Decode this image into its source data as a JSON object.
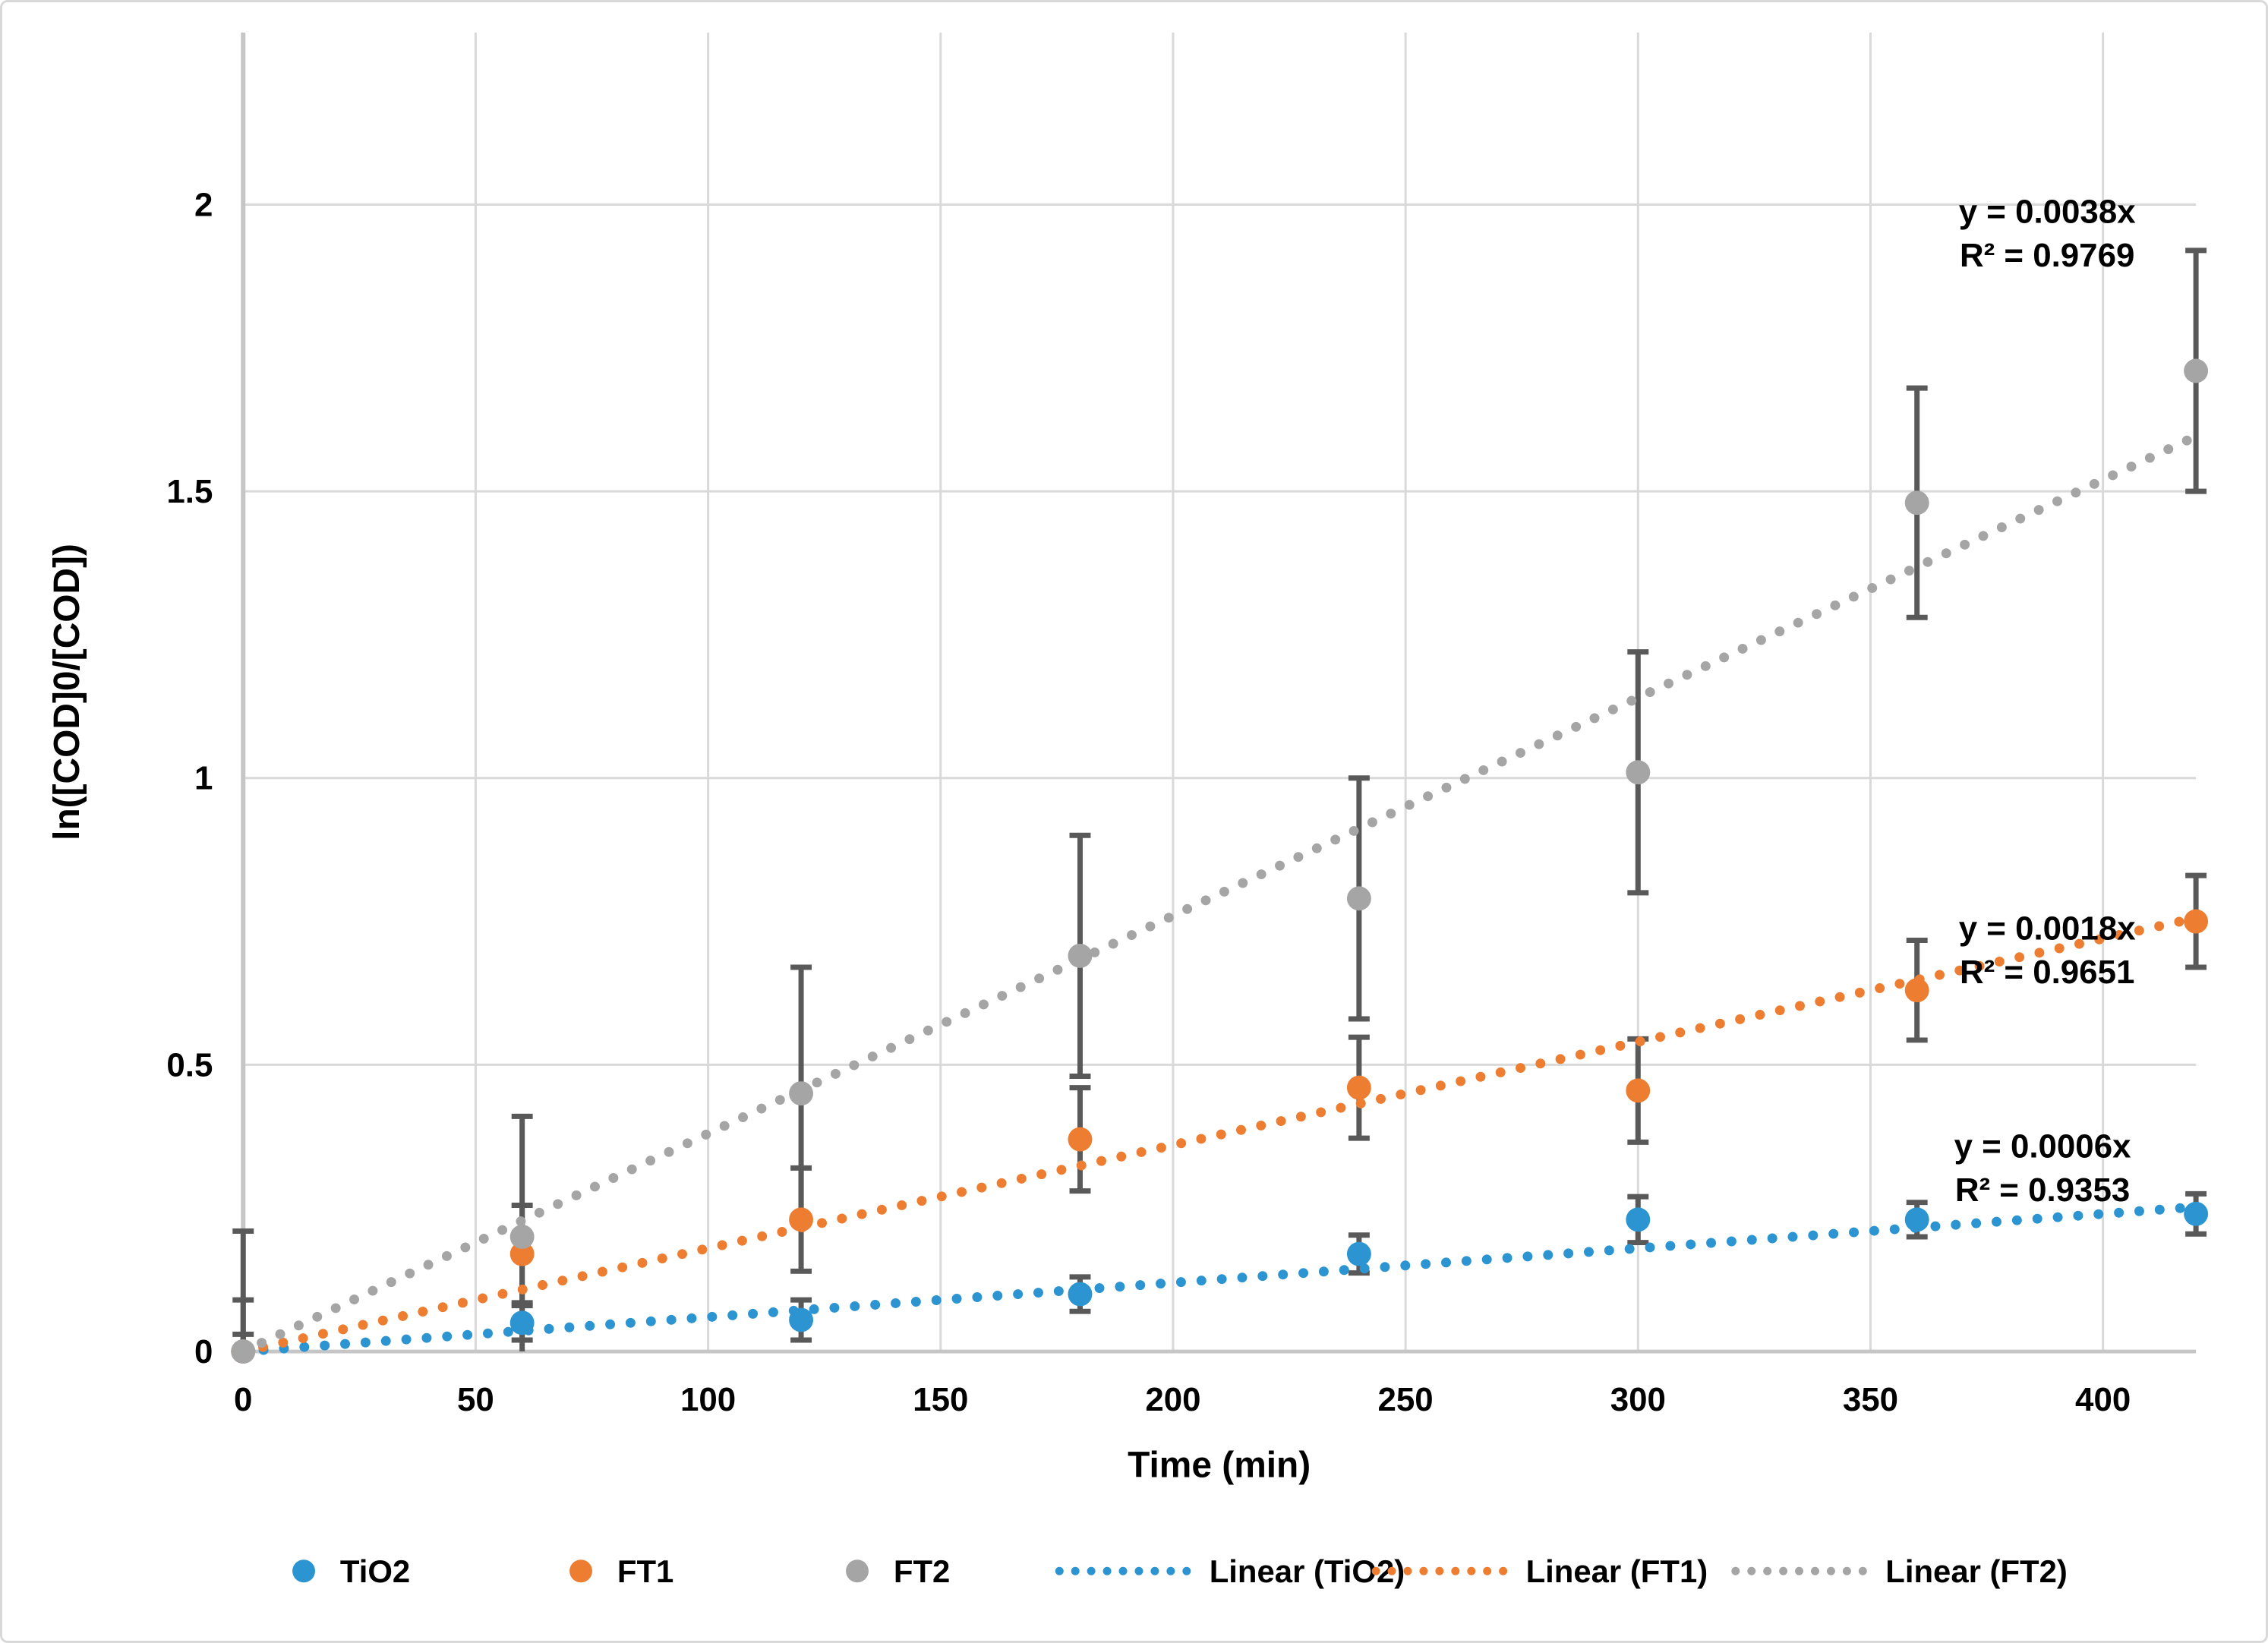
{
  "figure": {
    "background": "#FFFFFF",
    "border_color": "#D9D9D9"
  },
  "chart_data": {
    "type": "scatter",
    "title": "",
    "xlabel": "Time (min)",
    "ylabel": "ln([COD]0/[COD])",
    "xlim": [
      0,
      420
    ],
    "ylim": [
      0,
      2.3
    ],
    "x_ticks": [
      0,
      50,
      100,
      150,
      200,
      250,
      300,
      350,
      400
    ],
    "y_ticks": [
      0,
      0.5,
      1,
      1.5,
      2
    ],
    "grid": true,
    "legend_position": "bottom",
    "colors": {
      "grid": "#D9D9D9",
      "axis": "#C6C6C6",
      "error_bar": "#595959",
      "text": "#000000"
    },
    "x": [
      0,
      60,
      120,
      180,
      240,
      300,
      360,
      420
    ],
    "series": [
      {
        "name": "TiO2",
        "color": "#2B94D1",
        "values": [
          0,
          0.05,
          0.055,
          0.1,
          0.17,
          0.23,
          0.23,
          0.24
        ],
        "errors": [
          0.03,
          0.03,
          0.035,
          0.03,
          0.033,
          0.04,
          0.03,
          0.035
        ],
        "trendline": {
          "name": "Linear (TiO2)",
          "slope": 0.0006,
          "equation": "y = 0.0006x",
          "r_squared": "R² = 0.9353"
        }
      },
      {
        "name": "FT1",
        "color": "#ED7D31",
        "values": [
          0,
          0.17,
          0.23,
          0.37,
          0.46,
          0.455,
          0.63,
          0.75
        ],
        "errors": [
          0.09,
          0.085,
          0.09,
          0.09,
          0.088,
          0.09,
          0.087,
          0.08
        ],
        "trendline": {
          "name": "Linear (FT1)",
          "slope": 0.0018,
          "equation": "y = 0.0018x",
          "r_squared": "R² = 0.9651"
        }
      },
      {
        "name": "FT2",
        "color": "#A5A5A5",
        "values": [
          0,
          0.2,
          0.45,
          0.69,
          0.79,
          1.01,
          1.48,
          1.71
        ],
        "errors": [
          0.21,
          0.21,
          0.22,
          0.21,
          0.21,
          0.21,
          0.2,
          0.21
        ],
        "trendline": {
          "name": "Linear (FT2)",
          "slope": 0.0038,
          "equation": "y = 0.0038x",
          "r_squared": "R² = 0.9769"
        }
      }
    ],
    "annotations": [
      {
        "series": "FT2",
        "equation": "y = 0.0038x",
        "r_squared": "R² = 0.9769",
        "x": 388,
        "y": 1.95
      },
      {
        "series": "FT1",
        "equation": "y = 0.0018x",
        "r_squared": "R² = 0.9651",
        "x": 388,
        "y": 0.7
      },
      {
        "series": "TiO2",
        "equation": "y = 0.0006x",
        "r_squared": "R² = 0.9353",
        "x": 387,
        "y": 0.32
      }
    ],
    "legend": [
      "TiO2",
      "FT1",
      "FT2",
      "Linear (TiO2)",
      "Linear (FT1)",
      "Linear (FT2)"
    ]
  }
}
